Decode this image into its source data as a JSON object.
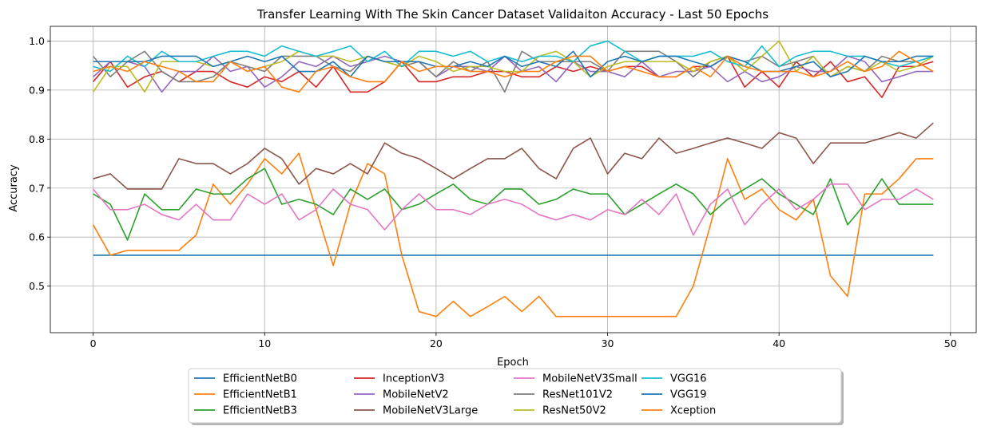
{
  "chart_data": {
    "type": "line",
    "title": "Transfer Learning With The Skin Cancer Dataset Validaiton Accuracy - Last 50 Epochs",
    "xlabel": "Epoch",
    "ylabel": "Accuracy",
    "xlim": [
      -2.5,
      51.5
    ],
    "ylim": [
      0.405,
      1.03
    ],
    "xticks": [
      0,
      10,
      20,
      30,
      40,
      50
    ],
    "yticks": [
      0.5,
      0.6,
      0.7,
      0.8,
      0.9,
      1.0
    ],
    "ytick_labels": [
      "0.5",
      "0.6",
      "0.7",
      "0.8",
      "0.9",
      "1.0"
    ],
    "grid": true,
    "legend_placement": "bottom-center-outside",
    "legend_columns": 5,
    "series": [
      {
        "name": "EfficientNetB0",
        "color": "#1f77b4",
        "values": [
          0.563,
          0.563,
          0.563,
          0.563,
          0.563,
          0.563,
          0.563,
          0.563,
          0.563,
          0.563,
          0.563,
          0.563,
          0.563,
          0.563,
          0.563,
          0.563,
          0.563,
          0.563,
          0.563,
          0.563,
          0.563,
          0.563,
          0.563,
          0.563,
          0.563,
          0.563,
          0.563,
          0.563,
          0.563,
          0.563,
          0.563,
          0.563,
          0.563,
          0.563,
          0.563,
          0.563,
          0.563,
          0.563,
          0.563,
          0.563,
          0.563,
          0.563,
          0.563,
          0.563,
          0.563,
          0.563,
          0.563,
          0.563,
          0.563,
          0.563
        ]
      },
      {
        "name": "EfficientNetB1",
        "color": "#ff7f0e",
        "values": [
          0.625,
          0.563,
          0.573,
          0.573,
          0.573,
          0.573,
          0.604,
          0.708,
          0.667,
          0.708,
          0.76,
          0.729,
          0.771,
          0.656,
          0.542,
          0.667,
          0.75,
          0.729,
          0.563,
          0.448,
          0.438,
          0.469,
          0.438,
          0.458,
          0.479,
          0.448,
          0.479,
          0.438,
          0.438,
          0.438,
          0.438,
          0.438,
          0.438,
          0.438,
          0.438,
          0.5,
          0.625,
          0.76,
          0.677,
          0.698,
          0.656,
          0.635,
          0.677,
          0.521,
          0.479,
          0.688,
          0.688,
          0.719,
          0.76,
          0.76
        ]
      },
      {
        "name": "EfficientNetB3",
        "color": "#2ca02c",
        "values": [
          0.688,
          0.667,
          0.594,
          0.688,
          0.656,
          0.656,
          0.698,
          0.688,
          0.688,
          0.719,
          0.74,
          0.667,
          0.677,
          0.667,
          0.646,
          0.698,
          0.677,
          0.698,
          0.656,
          0.667,
          0.688,
          0.708,
          0.677,
          0.667,
          0.698,
          0.698,
          0.667,
          0.677,
          0.698,
          0.688,
          0.688,
          0.646,
          0.667,
          0.688,
          0.708,
          0.688,
          0.646,
          0.677,
          0.698,
          0.719,
          0.688,
          0.667,
          0.646,
          0.719,
          0.625,
          0.667,
          0.719,
          0.667,
          0.667,
          0.667
        ]
      },
      {
        "name": "InceptionV3",
        "color": "#d62728",
        "values": [
          0.917,
          0.958,
          0.906,
          0.927,
          0.938,
          0.917,
          0.938,
          0.938,
          0.917,
          0.906,
          0.927,
          0.917,
          0.938,
          0.906,
          0.948,
          0.896,
          0.896,
          0.917,
          0.958,
          0.917,
          0.917,
          0.927,
          0.927,
          0.938,
          0.938,
          0.927,
          0.927,
          0.948,
          0.938,
          0.948,
          0.938,
          0.948,
          0.948,
          0.927,
          0.927,
          0.948,
          0.948,
          0.969,
          0.906,
          0.938,
          0.906,
          0.958,
          0.927,
          0.958,
          0.917,
          0.927,
          0.885,
          0.948,
          0.948,
          0.958
        ]
      },
      {
        "name": "MobileNetV2",
        "color": "#9467bd",
        "values": [
          0.927,
          0.958,
          0.958,
          0.948,
          0.896,
          0.938,
          0.938,
          0.969,
          0.938,
          0.948,
          0.906,
          0.927,
          0.958,
          0.948,
          0.969,
          0.948,
          0.958,
          0.969,
          0.958,
          0.958,
          0.927,
          0.948,
          0.948,
          0.938,
          0.969,
          0.938,
          0.948,
          0.917,
          0.958,
          0.938,
          0.938,
          0.927,
          0.958,
          0.927,
          0.938,
          0.938,
          0.948,
          0.917,
          0.938,
          0.917,
          0.927,
          0.948,
          0.938,
          0.938,
          0.969,
          0.958,
          0.917,
          0.927,
          0.938,
          0.938
        ]
      },
      {
        "name": "MobileNetV3Large",
        "color": "#8c564b",
        "values": [
          0.719,
          0.729,
          0.698,
          0.698,
          0.698,
          0.76,
          0.75,
          0.75,
          0.729,
          0.75,
          0.781,
          0.76,
          0.708,
          0.74,
          0.729,
          0.75,
          0.729,
          0.792,
          0.771,
          0.76,
          0.74,
          0.719,
          0.74,
          0.76,
          0.76,
          0.781,
          0.74,
          0.719,
          0.781,
          0.802,
          0.729,
          0.771,
          0.76,
          0.802,
          0.771,
          0.781,
          0.792,
          0.802,
          0.792,
          0.781,
          0.813,
          0.802,
          0.75,
          0.792,
          0.792,
          0.792,
          0.802,
          0.813,
          0.802,
          0.833
        ]
      },
      {
        "name": "MobileNetV3Small",
        "color": "#e377c2",
        "values": [
          0.698,
          0.656,
          0.656,
          0.667,
          0.646,
          0.635,
          0.667,
          0.635,
          0.635,
          0.688,
          0.667,
          0.688,
          0.635,
          0.656,
          0.698,
          0.667,
          0.656,
          0.615,
          0.656,
          0.688,
          0.656,
          0.656,
          0.646,
          0.667,
          0.677,
          0.667,
          0.646,
          0.635,
          0.646,
          0.635,
          0.656,
          0.646,
          0.677,
          0.646,
          0.688,
          0.604,
          0.667,
          0.698,
          0.625,
          0.667,
          0.698,
          0.656,
          0.677,
          0.708,
          0.708,
          0.656,
          0.677,
          0.677,
          0.698,
          0.677
        ]
      },
      {
        "name": "ResNet101V2",
        "color": "#7f7f7f",
        "values": [
          0.969,
          0.927,
          0.958,
          0.979,
          0.938,
          0.917,
          0.917,
          0.927,
          0.958,
          0.948,
          0.938,
          0.969,
          0.969,
          0.969,
          0.948,
          0.938,
          0.969,
          0.958,
          0.948,
          0.958,
          0.927,
          0.958,
          0.938,
          0.958,
          0.896,
          0.979,
          0.958,
          0.958,
          0.958,
          0.958,
          0.938,
          0.979,
          0.979,
          0.979,
          0.958,
          0.927,
          0.958,
          0.969,
          0.958,
          0.969,
          0.948,
          0.958,
          0.969,
          0.927,
          0.948,
          0.938,
          0.969,
          0.958,
          0.958,
          0.969
        ]
      },
      {
        "name": "ResNet50V2",
        "color": "#bcbd22",
        "values": [
          0.896,
          0.948,
          0.948,
          0.896,
          0.958,
          0.958,
          0.958,
          0.948,
          0.958,
          0.938,
          0.948,
          0.958,
          0.979,
          0.969,
          0.969,
          0.958,
          0.969,
          0.958,
          0.948,
          0.969,
          0.958,
          0.938,
          0.948,
          0.948,
          0.938,
          0.938,
          0.969,
          0.979,
          0.958,
          0.927,
          0.948,
          0.958,
          0.958,
          0.958,
          0.958,
          0.938,
          0.958,
          0.969,
          0.938,
          0.969,
          1.0,
          0.938,
          0.969,
          0.927,
          0.948,
          0.938,
          0.958,
          0.938,
          0.948,
          0.969
        ]
      },
      {
        "name": "VGG16",
        "color": "#17becf",
        "values": [
          0.948,
          0.938,
          0.969,
          0.948,
          0.979,
          0.958,
          0.958,
          0.969,
          0.979,
          0.979,
          0.969,
          0.99,
          0.979,
          0.969,
          0.979,
          0.99,
          0.958,
          0.979,
          0.948,
          0.979,
          0.979,
          0.969,
          0.979,
          0.958,
          0.969,
          0.958,
          0.969,
          0.969,
          0.958,
          0.99,
          1.0,
          0.979,
          0.958,
          0.969,
          0.969,
          0.969,
          0.979,
          0.958,
          0.948,
          0.99,
          0.948,
          0.969,
          0.979,
          0.979,
          0.969,
          0.969,
          0.958,
          0.948,
          0.958,
          0.969
        ]
      },
      {
        "name": "VGG19",
        "color": "#1f77b4",
        "values": [
          0.958,
          0.958,
          0.958,
          0.958,
          0.969,
          0.969,
          0.969,
          0.948,
          0.958,
          0.969,
          0.958,
          0.969,
          0.938,
          0.938,
          0.958,
          0.927,
          0.969,
          0.958,
          0.958,
          0.958,
          0.948,
          0.948,
          0.958,
          0.948,
          0.969,
          0.948,
          0.958,
          0.948,
          0.979,
          0.927,
          0.958,
          0.969,
          0.958,
          0.969,
          0.969,
          0.958,
          0.948,
          0.969,
          0.958,
          0.938,
          0.938,
          0.948,
          0.958,
          0.927,
          0.938,
          0.969,
          0.958,
          0.958,
          0.969,
          0.969
        ]
      },
      {
        "name": "Xception",
        "color": "#ff7f0e",
        "values": [
          0.938,
          0.948,
          0.938,
          0.958,
          0.948,
          0.938,
          0.917,
          0.917,
          0.958,
          0.938,
          0.948,
          0.906,
          0.896,
          0.938,
          0.948,
          0.927,
          0.917,
          0.917,
          0.958,
          0.938,
          0.948,
          0.948,
          0.938,
          0.938,
          0.927,
          0.938,
          0.938,
          0.958,
          0.969,
          0.969,
          0.938,
          0.948,
          0.938,
          0.927,
          0.927,
          0.948,
          0.927,
          0.969,
          0.948,
          0.938,
          0.938,
          0.938,
          0.927,
          0.938,
          0.958,
          0.938,
          0.948,
          0.979,
          0.958,
          0.938
        ]
      }
    ]
  }
}
